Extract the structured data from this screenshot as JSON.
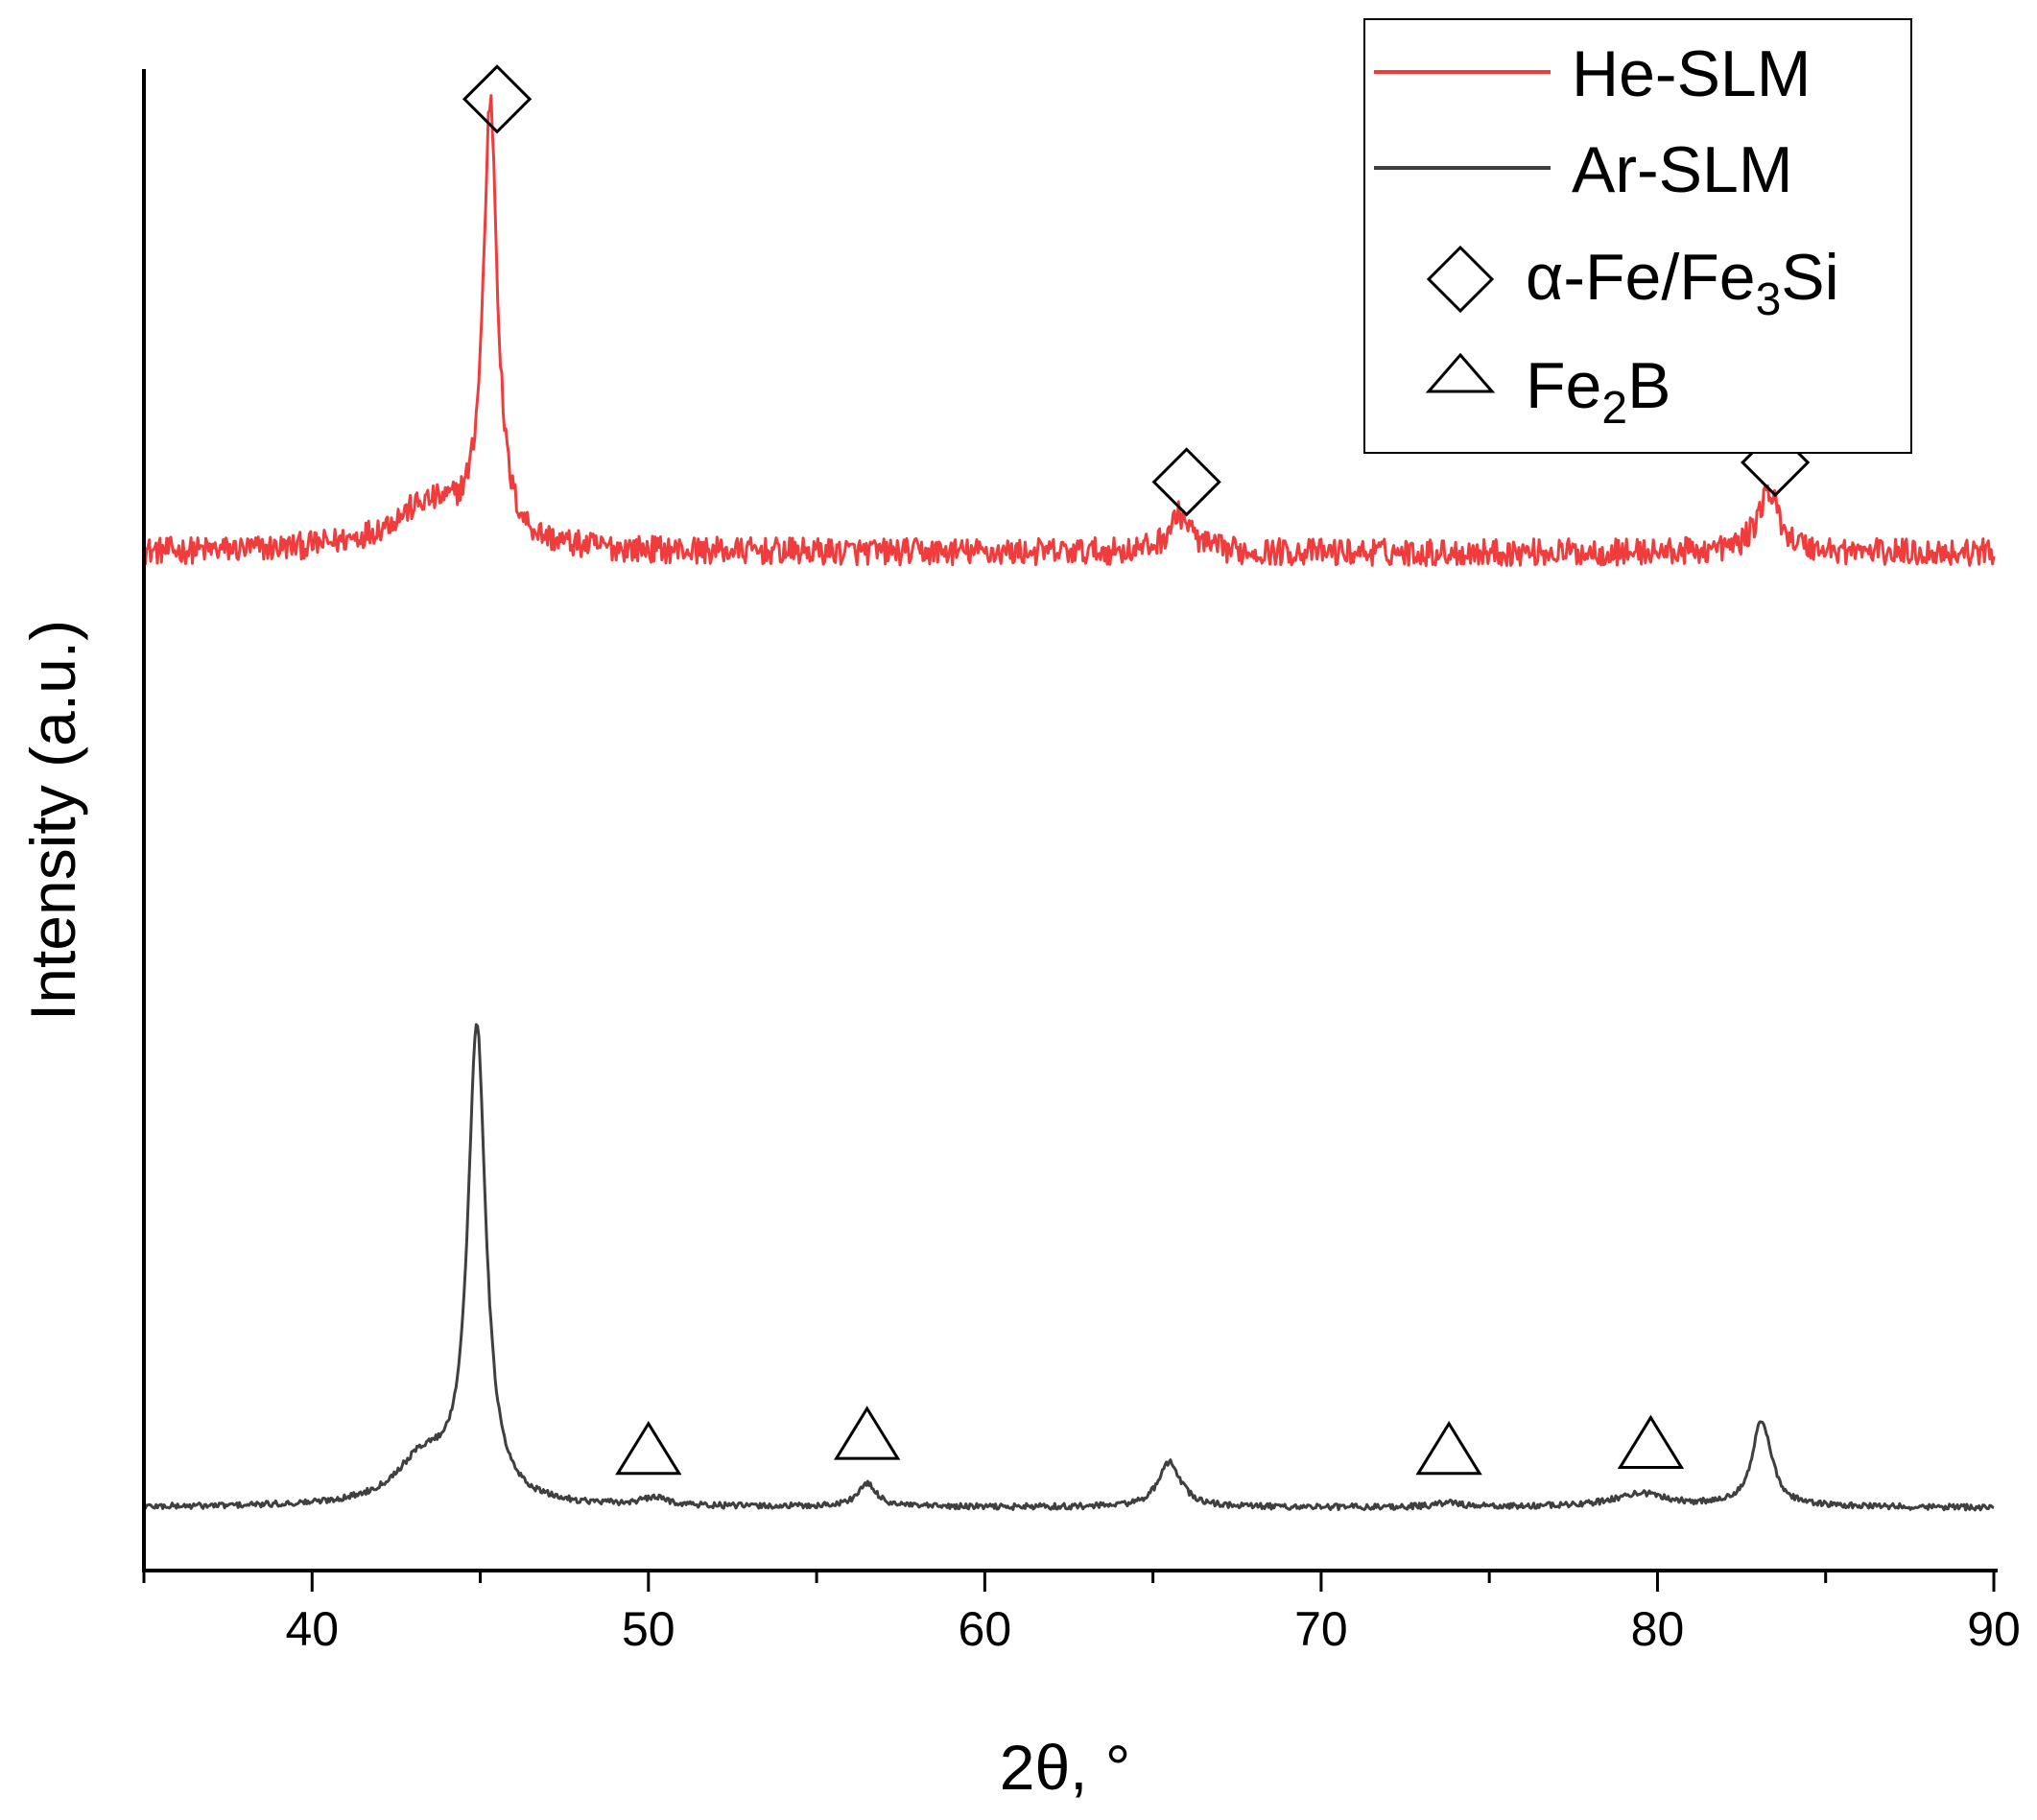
{
  "chart_data": {
    "type": "line",
    "title": "",
    "xlabel": "2θ, °",
    "ylabel": "Intensity (a.u.)",
    "xlim": [
      35,
      90
    ],
    "xticks": [
      40,
      50,
      60,
      70,
      80,
      90
    ],
    "ylim": [
      0,
      100
    ],
    "yticks_shown": false,
    "grid": false,
    "legend_position": "top-right",
    "colors": {
      "He-SLM": "#f03c3c",
      "Ar-SLM": "#3f3f3f"
    },
    "series": [
      {
        "name": "He-SLM",
        "baseline": 67.8,
        "peaks": [
          {
            "x": 43.5,
            "height": 3.0,
            "width": 1.5
          },
          {
            "x": 45.3,
            "height": 29.0,
            "width": 0.25
          },
          {
            "x": 65.8,
            "height": 2.5,
            "width": 0.4
          },
          {
            "x": 83.3,
            "height": 4.0,
            "width": 0.4
          }
        ],
        "noise": 0.9
      },
      {
        "name": "Ar-SLM",
        "baseline": 4.2,
        "peaks": [
          {
            "x": 43.3,
            "height": 3.0,
            "width": 1.0
          },
          {
            "x": 44.9,
            "height": 31.5,
            "width": 0.32
          },
          {
            "x": 50.2,
            "height": 0.5,
            "width": 0.5
          },
          {
            "x": 56.5,
            "height": 1.5,
            "width": 0.35
          },
          {
            "x": 65.5,
            "height": 3.0,
            "width": 0.4
          },
          {
            "x": 73.8,
            "height": 0.3,
            "width": 0.4
          },
          {
            "x": 79.5,
            "height": 0.9,
            "width": 1.0
          },
          {
            "x": 83.1,
            "height": 5.7,
            "width": 0.35
          }
        ],
        "noise": 0.2
      }
    ],
    "phase_markers": [
      {
        "symbol": "diamond",
        "phase": "α-Fe/Fe3Si",
        "x": 45.5,
        "y": 98.0
      },
      {
        "symbol": "diamond",
        "phase": "α-Fe/Fe3Si",
        "x": 66.0,
        "y": 72.5
      },
      {
        "symbol": "diamond",
        "phase": "α-Fe/Fe3Si",
        "x": 83.5,
        "y": 73.8
      },
      {
        "symbol": "triangle",
        "phase": "Fe2B",
        "x": 50.0,
        "y": 8.0
      },
      {
        "symbol": "triangle",
        "phase": "Fe2B",
        "x": 56.5,
        "y": 9.0
      },
      {
        "symbol": "triangle",
        "phase": "Fe2B",
        "x": 73.8,
        "y": 8.0
      },
      {
        "symbol": "triangle",
        "phase": "Fe2B",
        "x": 79.8,
        "y": 8.4
      }
    ],
    "legend": [
      {
        "type": "line",
        "label": "He-SLM",
        "color": "#f03c3c"
      },
      {
        "type": "line",
        "label": "Ar-SLM",
        "color": "#3f3f3f"
      },
      {
        "type": "diamond",
        "label_main": "α-Fe/Fe",
        "label_sub": "3",
        "label_tail": "Si"
      },
      {
        "type": "triangle",
        "label_main": "Fe",
        "label_sub": "2",
        "label_tail": "B"
      }
    ]
  }
}
